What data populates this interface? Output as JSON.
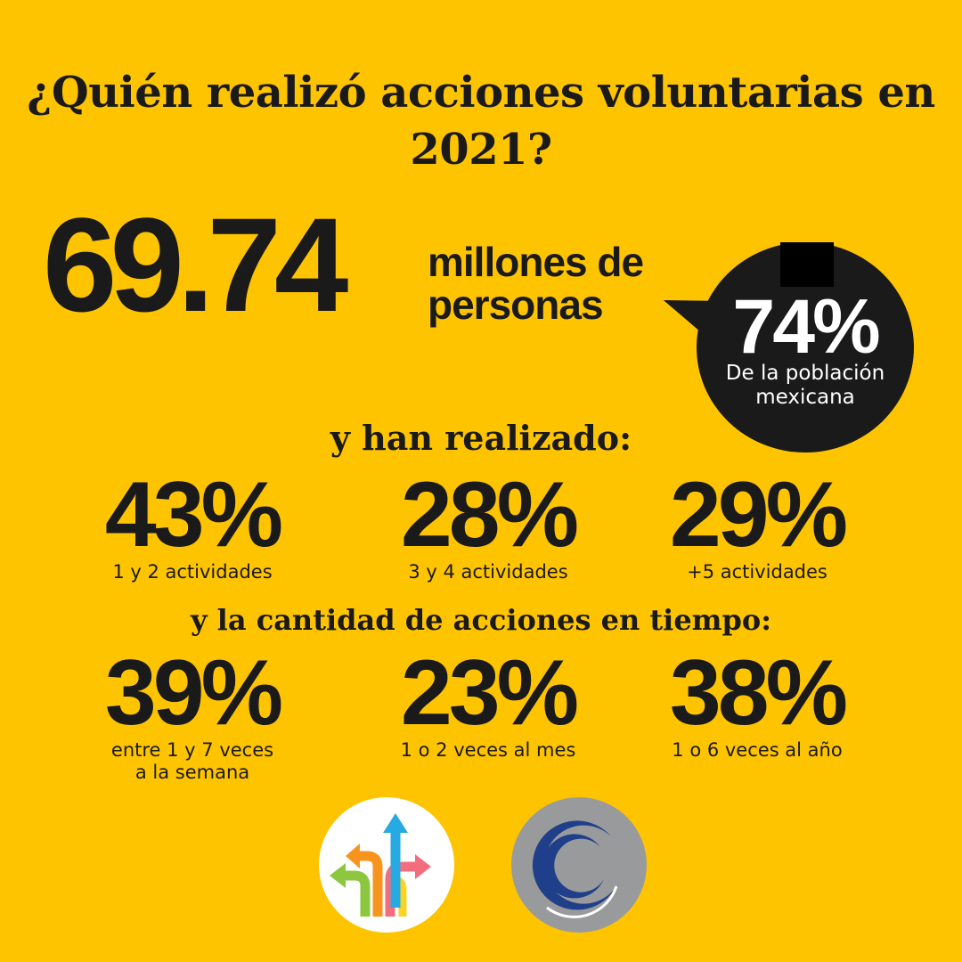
{
  "title": "¿Quién realizó acciones voluntarias en 2021?",
  "headline": {
    "value": "69.74",
    "unit": "millones de personas"
  },
  "bubble": {
    "value": "74%",
    "label": "De la población mexicana"
  },
  "section_activities": {
    "heading": "y han realizado:",
    "items": [
      {
        "value": "43%",
        "label": "1 y 2 actividades"
      },
      {
        "value": "28%",
        "label": "3 y 4 actividades"
      },
      {
        "value": "29%",
        "label": "+5 actividades"
      }
    ]
  },
  "section_frequency": {
    "heading": "y la cantidad de acciones en tiempo:",
    "items": [
      {
        "value": "39%",
        "label": "entre 1 y 7 veces a la semana"
      },
      {
        "value": "23%",
        "label": "1 o 2 veces al mes"
      },
      {
        "value": "38%",
        "label": "1 o 6 veces al año"
      }
    ]
  },
  "colors": {
    "background": "#FFC400",
    "text": "#1a1a1a",
    "bubble": "#1a1a1a",
    "logo_ring_bg": "#999a9c",
    "logo_ring_blue": "#1f3f8a"
  },
  "logos": [
    "arrows-logo",
    "ring-logo"
  ]
}
